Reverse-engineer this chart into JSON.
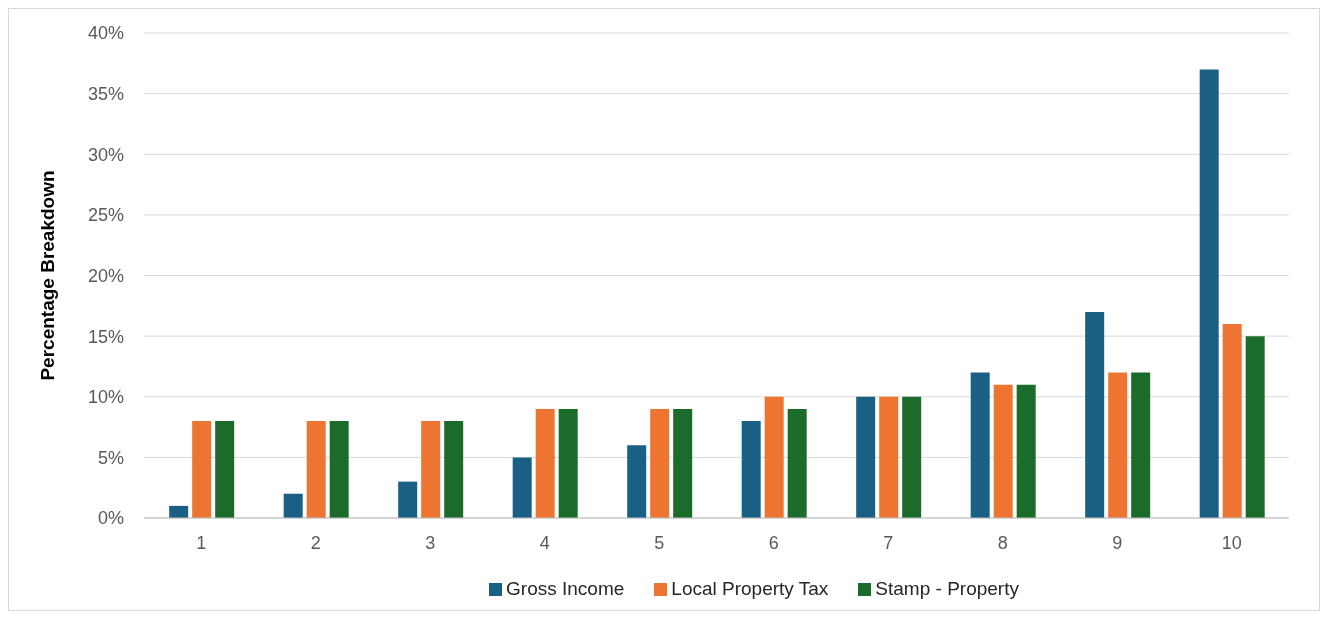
{
  "chart_data": {
    "type": "bar",
    "ylabel": "Percentage Breakdown",
    "categories": [
      "1",
      "2",
      "3",
      "4",
      "5",
      "6",
      "7",
      "8",
      "9",
      "10"
    ],
    "series": [
      {
        "name": "Gross Income",
        "color": "#1a5f84",
        "values": [
          1,
          2,
          3,
          5,
          6,
          8,
          10,
          12,
          17,
          37
        ]
      },
      {
        "name": "Local Property Tax",
        "color": "#ed7431",
        "values": [
          8,
          8,
          8,
          9,
          9,
          10,
          10,
          11,
          12,
          16
        ]
      },
      {
        "name": "Stamp - Property",
        "color": "#1b6b2b",
        "values": [
          8,
          8,
          8,
          9,
          9,
          9,
          10,
          11,
          12,
          15
        ]
      }
    ],
    "ylim": [
      0,
      40
    ],
    "yticks": [
      {
        "value": 0,
        "label": "0%"
      },
      {
        "value": 5,
        "label": "5%"
      },
      {
        "value": 10,
        "label": "10%"
      },
      {
        "value": 15,
        "label": "15%"
      },
      {
        "value": 20,
        "label": "20%"
      },
      {
        "value": 25,
        "label": "25%"
      },
      {
        "value": 30,
        "label": "30%"
      },
      {
        "value": 35,
        "label": "35%"
      },
      {
        "value": 40,
        "label": "40%"
      }
    ],
    "grid": "y",
    "legend": "bottom"
  }
}
